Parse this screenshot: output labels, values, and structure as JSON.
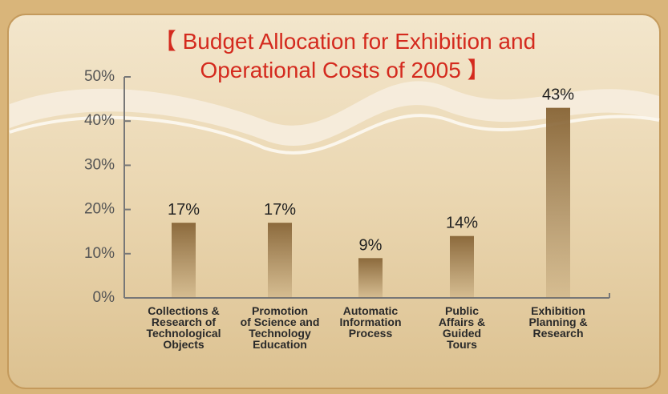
{
  "chart_data": {
    "type": "bar",
    "title": "【 Budget Allocation for Exhibition and\nOperational Costs of 2005 】",
    "categories": [
      "Collections &\nResearch of\nTechnological\nObjects",
      "Promotion\nof Science and\nTechnology\nEducation",
      "Automatic\nInformation\nProcess",
      "Public\nAffairs &\nGuided\nTours",
      "Exhibition\nPlanning &\nResearch"
    ],
    "values": [
      17,
      17,
      9,
      14,
      43
    ],
    "value_labels": [
      "17%",
      "17%",
      "9%",
      "14%",
      "43%"
    ],
    "color": "#8c6a3c",
    "ylim": [
      0,
      50
    ],
    "yticks": [
      {
        "value": 0,
        "label": "0%"
      },
      {
        "value": 10,
        "label": "10%"
      },
      {
        "value": 20,
        "label": "20%"
      },
      {
        "value": 30,
        "label": "30%"
      },
      {
        "value": 40,
        "label": "40%"
      },
      {
        "value": 50,
        "label": "50%"
      }
    ]
  }
}
